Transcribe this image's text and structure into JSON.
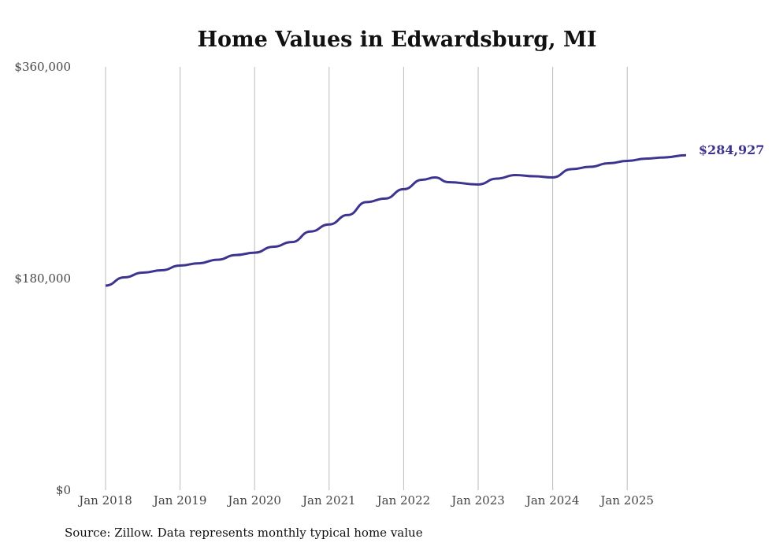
{
  "chart_data": {
    "type": "line",
    "title": "Home Values in Edwardsburg, MI",
    "xlabel": "",
    "ylabel": "",
    "ylim": [
      0,
      360000
    ],
    "yticks": [
      0,
      180000,
      360000
    ],
    "ytick_labels": [
      "$0",
      "$180,000",
      "$360,000"
    ],
    "xtick_labels": [
      "Jan 2018",
      "Jan 2019",
      "Jan 2020",
      "Jan 2021",
      "Jan 2022",
      "Jan 2023",
      "Jan 2024",
      "Jan 2025"
    ],
    "grid": "vertical",
    "line_color": "#3d3490",
    "end_label": "$284,927",
    "series": [
      {
        "name": "Typical home value",
        "x": [
          2018.0,
          2018.25,
          2018.5,
          2018.75,
          2019.0,
          2019.25,
          2019.5,
          2019.75,
          2020.0,
          2020.25,
          2020.5,
          2020.75,
          2021.0,
          2021.25,
          2021.5,
          2021.75,
          2022.0,
          2022.25,
          2022.42,
          2022.6,
          2023.0,
          2023.25,
          2023.5,
          2023.75,
          2024.0,
          2024.25,
          2024.5,
          2024.75,
          2025.0,
          2025.25,
          2025.5,
          2025.79
        ],
        "values": [
          174000,
          181000,
          185000,
          187000,
          191000,
          193000,
          196000,
          200000,
          202000,
          207000,
          211000,
          220000,
          226000,
          234000,
          245000,
          248000,
          256000,
          264000,
          266000,
          262000,
          260000,
          265000,
          268000,
          267000,
          266000,
          273000,
          275000,
          278000,
          280000,
          282000,
          283000,
          284927
        ]
      }
    ]
  },
  "source": "Source: Zillow. Data represents monthly typical home value"
}
